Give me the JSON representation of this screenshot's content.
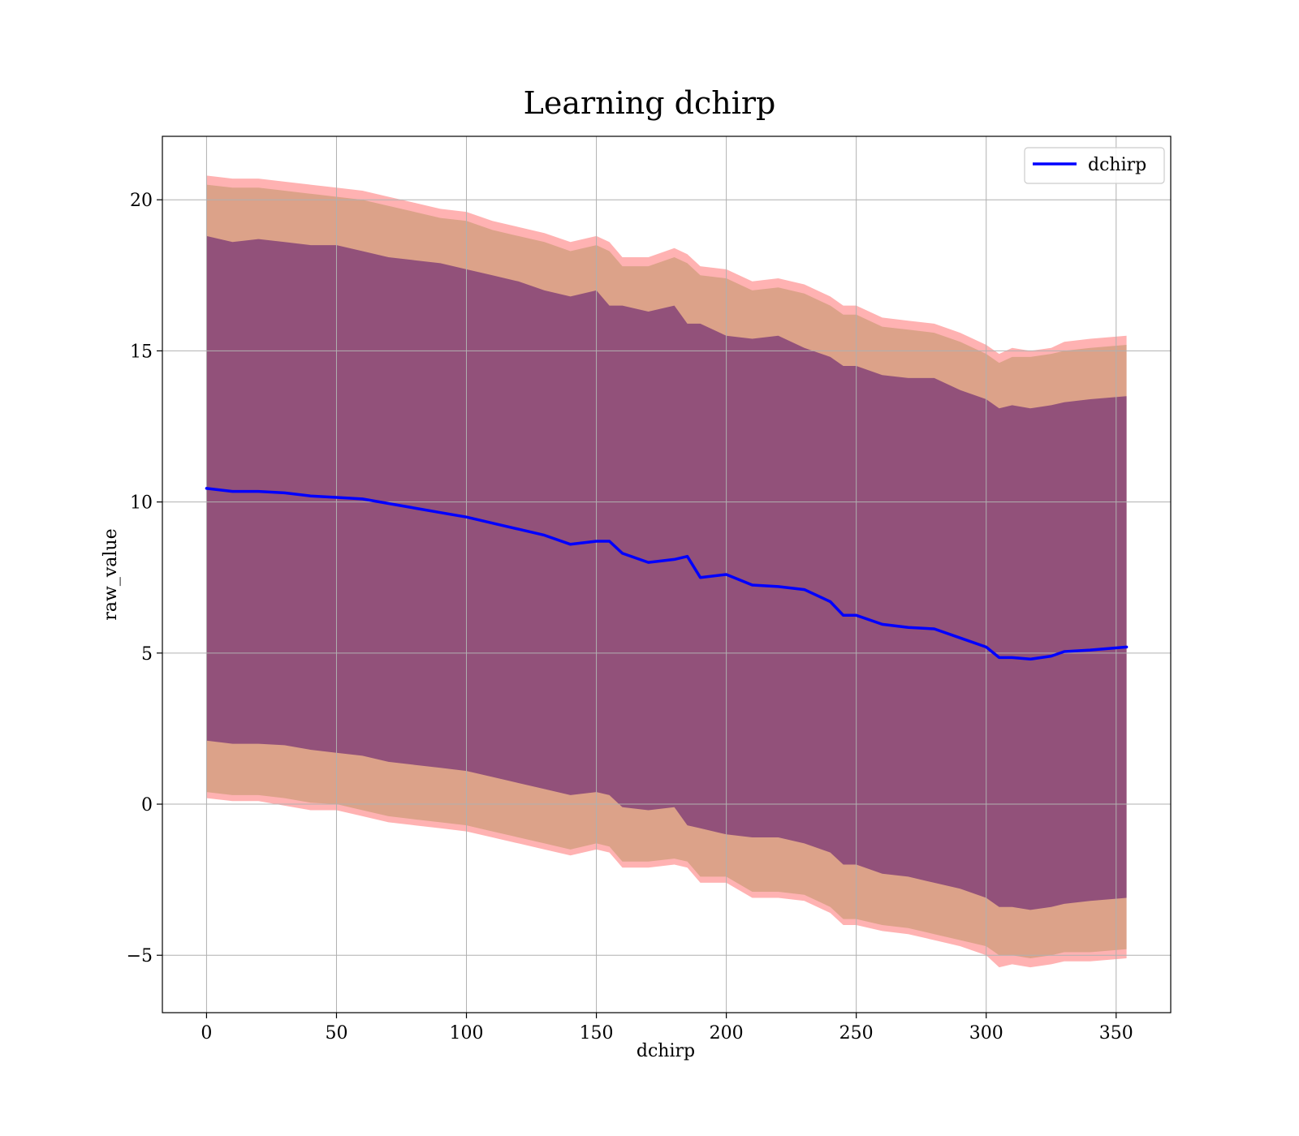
{
  "chart_data": {
    "type": "line",
    "title": "Learning dchirp",
    "xlabel": "dchirp",
    "ylabel": "raw_value",
    "xlim": [
      -17,
      371
    ],
    "ylim": [
      -6.9,
      22.1
    ],
    "xticks": [
      0,
      50,
      100,
      150,
      200,
      250,
      300,
      350
    ],
    "xtick_labels": [
      "0",
      "50",
      "100",
      "150",
      "200",
      "250",
      "300",
      "350"
    ],
    "yticks": [
      -5,
      0,
      5,
      10,
      15,
      20
    ],
    "ytick_labels": [
      "−5",
      "0",
      "5",
      "10",
      "15",
      "20"
    ],
    "grid": true,
    "legend": {
      "location": "upper right",
      "entries": [
        "dchirp"
      ]
    },
    "colors": {
      "line": "#0000ff",
      "band_outer": "#ff0000",
      "band_mid": "#8b7d2a",
      "band_inner": "#550e6e"
    },
    "x": [
      0,
      10,
      20,
      30,
      40,
      50,
      60,
      70,
      80,
      90,
      100,
      110,
      120,
      130,
      140,
      150,
      155,
      160,
      170,
      180,
      185,
      190,
      200,
      210,
      220,
      230,
      240,
      245,
      250,
      260,
      270,
      280,
      290,
      300,
      305,
      310,
      317,
      325,
      330,
      340,
      354
    ],
    "series": [
      {
        "name": "dchirp",
        "values": [
          10.45,
          10.35,
          10.35,
          10.3,
          10.2,
          10.15,
          10.1,
          9.95,
          9.8,
          9.65,
          9.5,
          9.3,
          9.1,
          8.9,
          8.6,
          8.7,
          8.7,
          8.3,
          8.0,
          8.1,
          8.2,
          7.5,
          7.6,
          7.25,
          7.2,
          7.1,
          6.7,
          6.25,
          6.25,
          5.95,
          5.85,
          5.8,
          5.5,
          5.2,
          4.85,
          4.85,
          4.8,
          4.9,
          5.05,
          5.1,
          5.2
        ]
      }
    ],
    "bands": [
      {
        "color": "outer",
        "upper": [
          20.8,
          20.7,
          20.7,
          20.6,
          20.5,
          20.4,
          20.3,
          20.1,
          19.9,
          19.7,
          19.6,
          19.3,
          19.1,
          18.9,
          18.6,
          18.8,
          18.6,
          18.1,
          18.1,
          18.4,
          18.2,
          17.8,
          17.7,
          17.3,
          17.4,
          17.2,
          16.8,
          16.5,
          16.5,
          16.1,
          16.0,
          15.9,
          15.6,
          15.2,
          14.9,
          15.1,
          15.0,
          15.1,
          15.3,
          15.4,
          15.5
        ],
        "lower": [
          0.2,
          0.1,
          0.1,
          -0.05,
          -0.2,
          -0.2,
          -0.4,
          -0.6,
          -0.7,
          -0.8,
          -0.9,
          -1.1,
          -1.3,
          -1.5,
          -1.7,
          -1.5,
          -1.6,
          -2.1,
          -2.1,
          -2.0,
          -2.1,
          -2.6,
          -2.6,
          -3.1,
          -3.1,
          -3.2,
          -3.6,
          -4.0,
          -4.0,
          -4.2,
          -4.3,
          -4.5,
          -4.7,
          -5.0,
          -5.4,
          -5.3,
          -5.4,
          -5.3,
          -5.2,
          -5.2,
          -5.1
        ]
      },
      {
        "color": "mid",
        "upper": [
          20.5,
          20.4,
          20.4,
          20.3,
          20.2,
          20.1,
          20.0,
          19.8,
          19.6,
          19.4,
          19.3,
          19.0,
          18.8,
          18.6,
          18.3,
          18.5,
          18.3,
          17.8,
          17.8,
          18.1,
          17.9,
          17.5,
          17.4,
          17.0,
          17.1,
          16.9,
          16.5,
          16.2,
          16.2,
          15.8,
          15.7,
          15.6,
          15.3,
          14.9,
          14.6,
          14.8,
          14.8,
          14.9,
          15.0,
          15.1,
          15.2
        ],
        "lower": [
          0.4,
          0.3,
          0.3,
          0.2,
          0.05,
          0.0,
          -0.2,
          -0.4,
          -0.5,
          -0.6,
          -0.7,
          -0.9,
          -1.1,
          -1.3,
          -1.5,
          -1.3,
          -1.4,
          -1.9,
          -1.9,
          -1.8,
          -1.9,
          -2.4,
          -2.4,
          -2.9,
          -2.9,
          -3.0,
          -3.4,
          -3.8,
          -3.8,
          -4.0,
          -4.1,
          -4.3,
          -4.5,
          -4.7,
          -5.0,
          -5.0,
          -5.1,
          -5.0,
          -4.9,
          -4.9,
          -4.8
        ]
      },
      {
        "color": "inner",
        "upper": [
          18.8,
          18.6,
          18.7,
          18.6,
          18.5,
          18.5,
          18.3,
          18.1,
          18.0,
          17.9,
          17.7,
          17.5,
          17.3,
          17.0,
          16.8,
          17.0,
          16.5,
          16.5,
          16.3,
          16.5,
          15.9,
          15.9,
          15.5,
          15.4,
          15.5,
          15.1,
          14.8,
          14.5,
          14.5,
          14.2,
          14.1,
          14.1,
          13.7,
          13.4,
          13.1,
          13.2,
          13.1,
          13.2,
          13.3,
          13.4,
          13.5
        ],
        "lower": [
          2.1,
          2.0,
          2.0,
          1.95,
          1.8,
          1.7,
          1.6,
          1.4,
          1.3,
          1.2,
          1.1,
          0.9,
          0.7,
          0.5,
          0.3,
          0.4,
          0.3,
          -0.1,
          -0.2,
          -0.1,
          -0.7,
          -0.8,
          -1.0,
          -1.1,
          -1.1,
          -1.3,
          -1.6,
          -2.0,
          -2.0,
          -2.3,
          -2.4,
          -2.6,
          -2.8,
          -3.1,
          -3.4,
          -3.4,
          -3.5,
          -3.4,
          -3.3,
          -3.2,
          -3.1
        ]
      }
    ]
  }
}
